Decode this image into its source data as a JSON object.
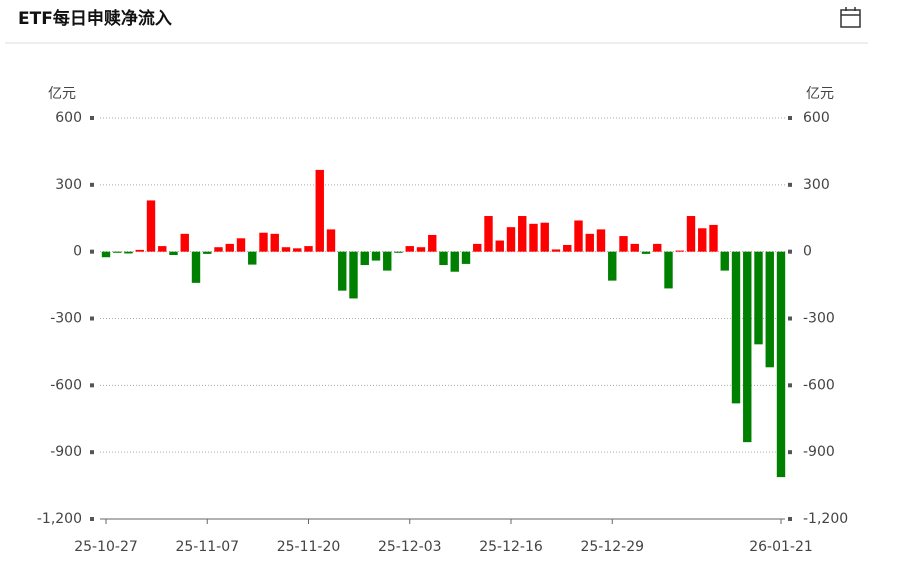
{
  "chart_data": {
    "type": "bar",
    "title": "ETF每日申赎净流入",
    "y_unit_left": "亿元",
    "y_unit_right": "亿元",
    "categories": [
      "25-10-27",
      null,
      null,
      null,
      null,
      null,
      null,
      null,
      null,
      "25-11-07",
      null,
      null,
      null,
      null,
      null,
      null,
      null,
      null,
      "25-11-20",
      null,
      null,
      null,
      null,
      null,
      null,
      null,
      null,
      "25-12-03",
      null,
      null,
      null,
      null,
      null,
      null,
      null,
      null,
      "25-12-16",
      null,
      null,
      null,
      null,
      null,
      null,
      null,
      null,
      "25-12-29",
      null,
      null,
      null,
      null,
      null,
      null,
      null,
      null,
      null,
      null,
      null,
      null,
      null,
      null,
      "26-01-21"
    ],
    "values": [
      -25,
      -5,
      -8,
      8,
      230,
      25,
      -15,
      80,
      -140,
      -10,
      20,
      35,
      60,
      -58,
      85,
      80,
      20,
      15,
      25,
      367,
      100,
      -175,
      -210,
      -60,
      -40,
      -85,
      -5,
      25,
      20,
      75,
      -60,
      -90,
      -55,
      35,
      160,
      50,
      110,
      160,
      125,
      130,
      10,
      30,
      140,
      80,
      100,
      -130,
      70,
      35,
      -10,
      35,
      -165,
      5,
      160,
      105,
      120,
      -85,
      -681,
      -855,
      -416,
      -519,
      -1012
    ],
    "positive_color": "#ff0000",
    "negative_color": "#008000",
    "ylim": [
      -1200,
      600
    ],
    "yticks": [
      {
        "value": -1200,
        "label": "-1,200"
      },
      -900,
      -600,
      -300,
      0,
      300,
      600
    ],
    "grid": true
  }
}
